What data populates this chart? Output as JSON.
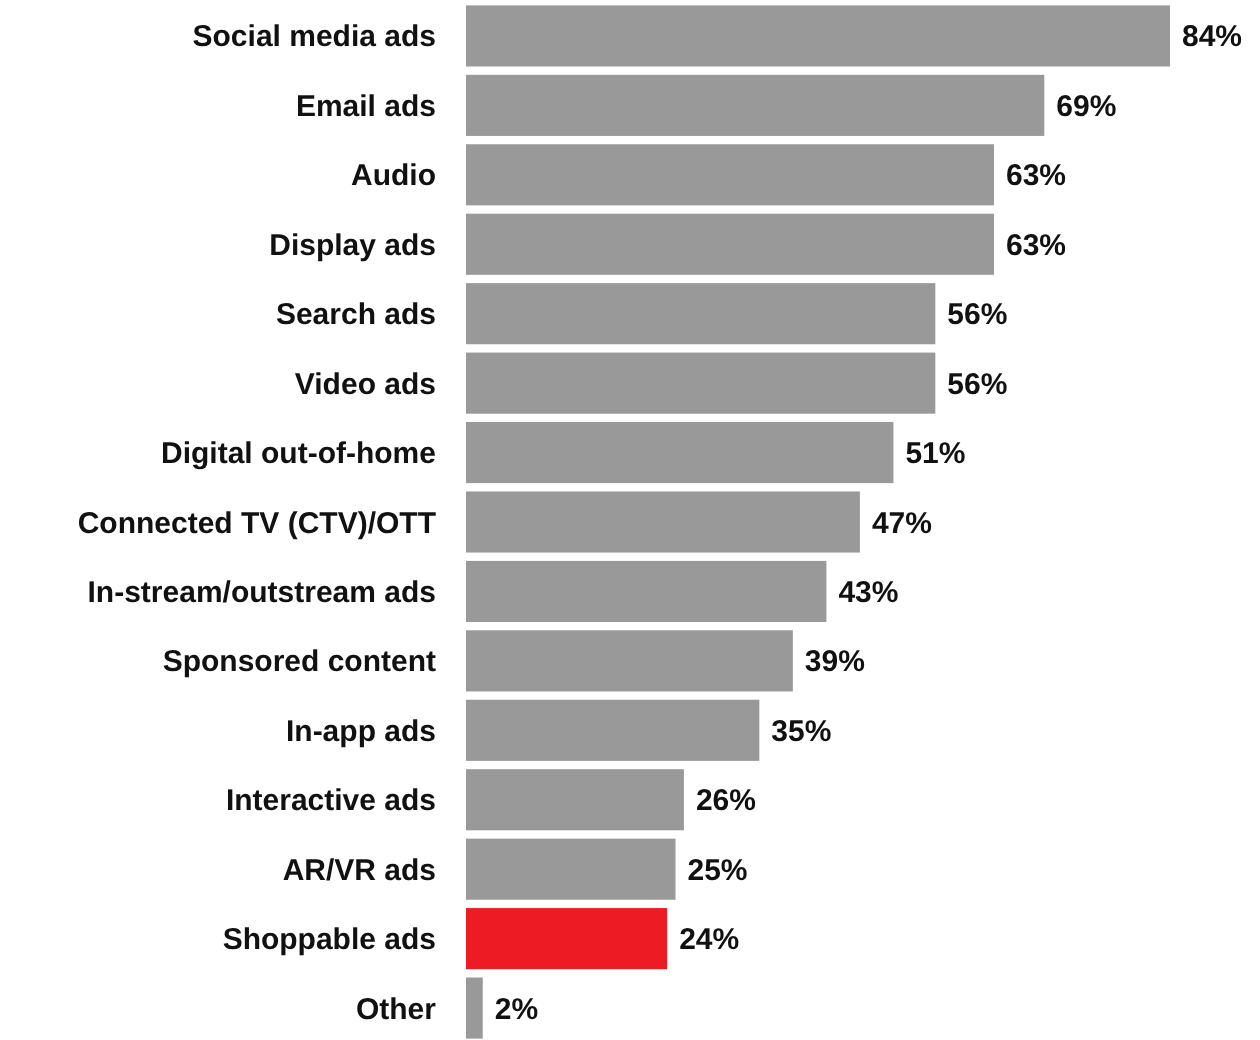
{
  "chart_data": {
    "type": "bar",
    "orientation": "horizontal",
    "categories": [
      "Social media ads",
      "Email ads",
      "Audio",
      "Display ads",
      "Search ads",
      "Video ads",
      "Digital out-of-home",
      "Connected TV (CTV)/OTT",
      "In-stream/outstream ads",
      "Sponsored content",
      "In-app ads",
      "Interactive ads",
      "AR/VR ads",
      "Shoppable ads",
      "Other"
    ],
    "values": [
      84,
      69,
      63,
      63,
      56,
      56,
      51,
      47,
      43,
      39,
      35,
      26,
      25,
      24,
      2
    ],
    "colors": [
      "#999999",
      "#999999",
      "#999999",
      "#999999",
      "#999999",
      "#999999",
      "#999999",
      "#999999",
      "#999999",
      "#999999",
      "#999999",
      "#999999",
      "#999999",
      "#ed1c24",
      "#999999"
    ],
    "value_labels": [
      "84%",
      "69%",
      "63%",
      "63%",
      "56%",
      "56%",
      "51%",
      "47%",
      "43%",
      "39%",
      "35%",
      "26%",
      "25%",
      "24%",
      "2%"
    ]
  }
}
